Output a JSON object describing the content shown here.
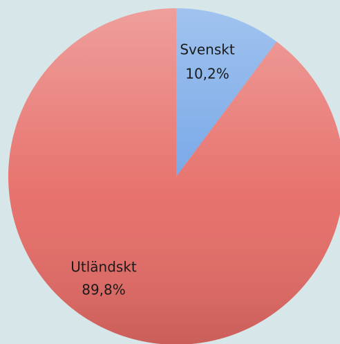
{
  "chart_data": {
    "type": "pie",
    "categories": [
      "Svenskt",
      "Utländskt"
    ],
    "values": [
      10.2,
      89.8
    ],
    "value_labels": [
      "10,2%",
      "89,8%"
    ],
    "colors": [
      "#6ea2e6",
      "#e66b66"
    ]
  }
}
